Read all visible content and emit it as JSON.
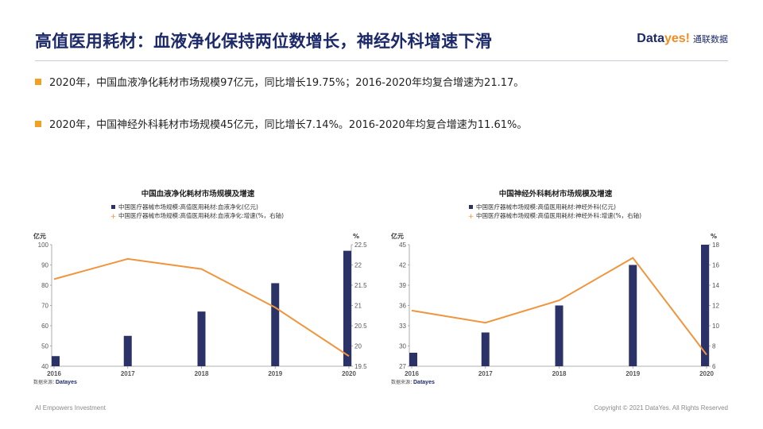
{
  "header": {
    "title": "高值医用耗材：血液净化保持两位数增长，神经外科增速下滑",
    "logo_brand": "Data",
    "logo_brand_accent": "yes!",
    "logo_cn": "通联数据"
  },
  "bullets": [
    "2020年，中国血液净化耗材市场规模97亿元，同比增长19.75%；2016-2020年均复合增速为21.17。",
    "2020年，中国神经外科耗材市场规模45亿元，同比增长7.14%。2016-2020年均复合增速为11.61%。"
  ],
  "footer": {
    "left": "AI Empowers Investment",
    "right": "Copyright © 2021 DataYes. All Rights Reserved"
  },
  "colors": {
    "bar": "#2b3267",
    "line": "#f0953e",
    "title": "#1d2a6a",
    "accent": "#f0a023"
  },
  "chart_data": [
    {
      "type": "bar+line",
      "title": "中国血液净化耗材市场规模及增速",
      "legend": [
        "中国医疗器械市场规模:高值医用耗材:血液净化(亿元)",
        "中国医疗器械市场规模:高值医用耗材:血液净化:增速(%，右轴)"
      ],
      "categories": [
        "2016",
        "2017",
        "2018",
        "2019",
        "2020"
      ],
      "series": [
        {
          "name": "中国医疗器械市场规模:高值医用耗材:血液净化(亿元)",
          "axis": "left",
          "kind": "bar",
          "values": [
            45,
            55,
            67,
            81,
            97
          ]
        },
        {
          "name": "中国医疗器械市场规模:高值医用耗材:血液净化:增速(%，右轴)",
          "axis": "right",
          "kind": "line",
          "values": [
            21.65,
            22.15,
            21.9,
            20.95,
            19.75
          ]
        }
      ],
      "yleft": {
        "label": "亿元",
        "range": [
          40,
          100
        ],
        "ticks": [
          40,
          50,
          60,
          70,
          80,
          90,
          100
        ]
      },
      "yright": {
        "label": "%",
        "range": [
          19.5,
          22.5
        ],
        "ticks": [
          19.5,
          20,
          20.5,
          21,
          21.5,
          22,
          22.5
        ]
      },
      "source_label": "数据来源：",
      "source_brand": "Datayes"
    },
    {
      "type": "bar+line",
      "title": "中国神经外科耗材市场规模及增速",
      "legend": [
        "中国医疗器械市场规模:高值医用耗材:神经外科(亿元)",
        "中国医疗器械市场规模:高值医用耗材:神经外科:增速(%，右轴)"
      ],
      "categories": [
        "2016",
        "2017",
        "2018",
        "2019",
        "2020"
      ],
      "series": [
        {
          "name": "中国医疗器械市场规模:高值医用耗材:神经外科(亿元)",
          "axis": "left",
          "kind": "bar",
          "values": [
            29,
            32,
            36,
            42,
            45
          ]
        },
        {
          "name": "中国医疗器械市场规模:高值医用耗材:神经外科:增速(%，右轴)",
          "axis": "right",
          "kind": "line",
          "values": [
            11.5,
            10.3,
            12.5,
            16.7,
            7.14
          ]
        }
      ],
      "yleft": {
        "label": "亿元",
        "range": [
          27,
          45
        ],
        "ticks": [
          27,
          30,
          33,
          36,
          39,
          42,
          45
        ]
      },
      "yright": {
        "label": "%",
        "range": [
          6,
          18
        ],
        "ticks": [
          6,
          8,
          10,
          12,
          14,
          16,
          18
        ]
      },
      "source_label": "数据来源：",
      "source_brand": "Datayes"
    }
  ]
}
